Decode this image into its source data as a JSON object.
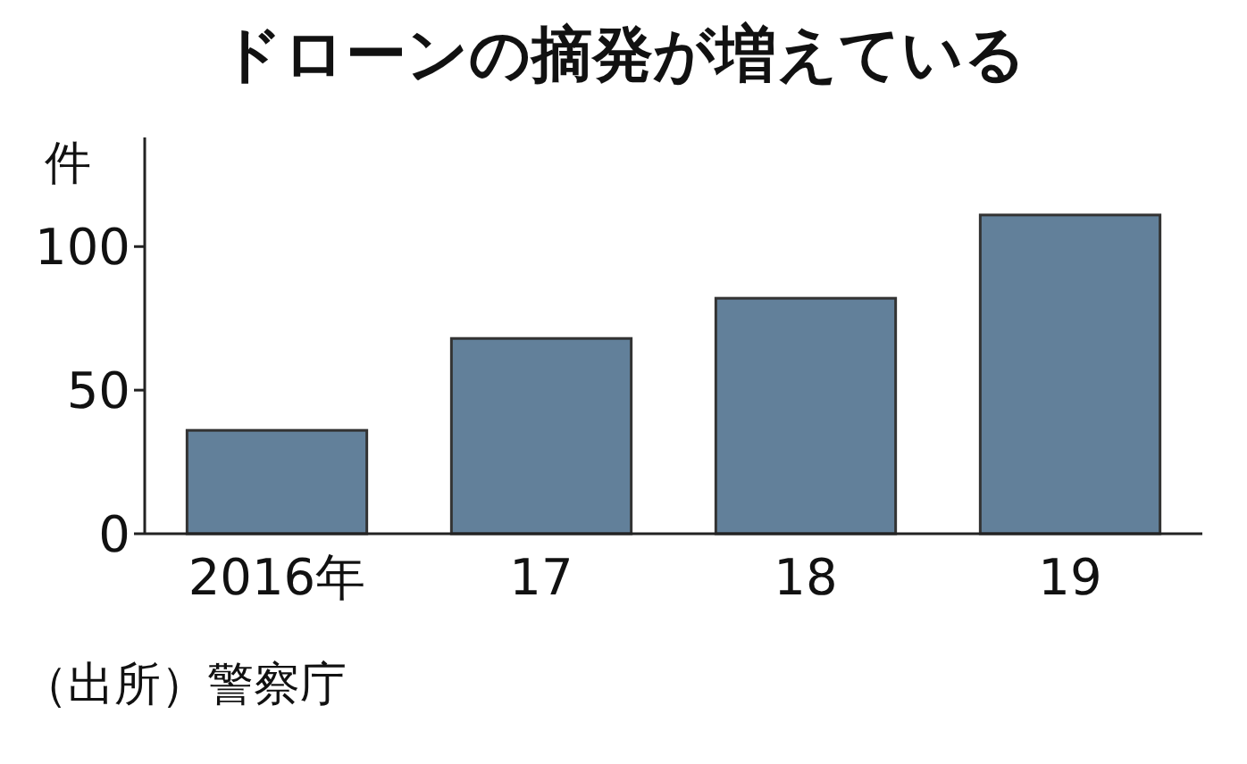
{
  "chart_data": {
    "type": "bar",
    "title": "ドローンの摘発が増えている",
    "ylabel": "件",
    "categories": [
      "2016年",
      "17",
      "18",
      "19"
    ],
    "values": [
      36,
      68,
      82,
      111
    ],
    "color": "#62809a",
    "ylim": [
      0,
      138
    ],
    "yticks": [
      0,
      50,
      100
    ],
    "grid": false,
    "annotations": [
      "（出所）警察庁"
    ]
  }
}
